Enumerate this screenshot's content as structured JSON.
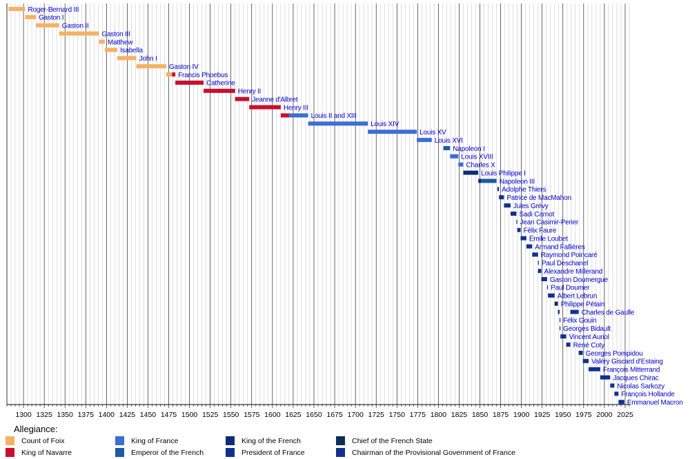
{
  "chart_data": {
    "type": "timeline",
    "title": "",
    "xlabel": "",
    "ylabel": "",
    "xlim": [
      1280,
      2030
    ],
    "x_ticks": [
      1300,
      1325,
      1350,
      1375,
      1400,
      1425,
      1450,
      1475,
      1500,
      1525,
      1550,
      1575,
      1600,
      1625,
      1650,
      1675,
      1700,
      1725,
      1750,
      1775,
      1800,
      1825,
      1850,
      1875,
      1900,
      1925,
      1950,
      1975,
      2000,
      2025
    ],
    "minor_tick_step": 5,
    "grid": "vertical",
    "legend": {
      "title": "Allegiance:",
      "placement": "bottom",
      "items": [
        {
          "key": "foix",
          "label": "Count of Foix",
          "color": "#F4B266"
        },
        {
          "key": "navarre",
          "label": "King of Navarre",
          "color": "#C8102E"
        },
        {
          "key": "france",
          "label": "King of France",
          "color": "#3D6FD1"
        },
        {
          "key": "emperor",
          "label": "Emperor of the French",
          "color": "#1F5A9E"
        },
        {
          "key": "french",
          "label": "King of the French",
          "color": "#102A7A"
        },
        {
          "key": "president",
          "label": "President of France",
          "color": "#10318F"
        },
        {
          "key": "chief",
          "label": "Chief of the French State",
          "color": "#0F2D55"
        },
        {
          "key": "provisional",
          "label": "Chairman of the Provisional Government of France",
          "color": "#12308A"
        }
      ]
    },
    "series": [
      {
        "label": "Roger-Bernard III",
        "segments": [
          {
            "start": 1282,
            "end": 1302,
            "key": "foix"
          }
        ]
      },
      {
        "label": "Gaston I",
        "segments": [
          {
            "start": 1302,
            "end": 1315,
            "key": "foix"
          }
        ]
      },
      {
        "label": "Gaston II",
        "segments": [
          {
            "start": 1315,
            "end": 1343,
            "key": "foix"
          }
        ]
      },
      {
        "label": "Gaston III",
        "segments": [
          {
            "start": 1343,
            "end": 1391,
            "key": "foix"
          }
        ]
      },
      {
        "label": "Matthew",
        "segments": [
          {
            "start": 1391,
            "end": 1398,
            "key": "foix"
          }
        ]
      },
      {
        "label": "Isabella",
        "segments": [
          {
            "start": 1398,
            "end": 1413,
            "key": "foix"
          }
        ]
      },
      {
        "label": "John I",
        "segments": [
          {
            "start": 1413,
            "end": 1436,
            "key": "foix"
          }
        ]
      },
      {
        "label": "Gaston IV",
        "segments": [
          {
            "start": 1436,
            "end": 1472,
            "key": "foix"
          }
        ]
      },
      {
        "label": "Francis Phoebus",
        "segments": [
          {
            "start": 1472,
            "end": 1479,
            "key": "foix"
          },
          {
            "start": 1479,
            "end": 1483,
            "key": "navarre"
          }
        ]
      },
      {
        "label": "Catherine",
        "segments": [
          {
            "start": 1483,
            "end": 1517,
            "key": "navarre"
          }
        ]
      },
      {
        "label": "Henry II",
        "segments": [
          {
            "start": 1517,
            "end": 1555,
            "key": "navarre"
          }
        ]
      },
      {
        "label": "Jeanne d'Albret",
        "segments": [
          {
            "start": 1555,
            "end": 1572,
            "key": "navarre"
          }
        ]
      },
      {
        "label": "Henry III",
        "segments": [
          {
            "start": 1572,
            "end": 1610,
            "key": "navarre"
          }
        ]
      },
      {
        "label": "Louis II and XIII",
        "segments": [
          {
            "start": 1610,
            "end": 1620,
            "key": "navarre"
          },
          {
            "start": 1620,
            "end": 1643,
            "key": "france"
          }
        ]
      },
      {
        "label": "Louis XIV",
        "segments": [
          {
            "start": 1643,
            "end": 1715,
            "key": "france"
          }
        ]
      },
      {
        "label": "Louis XV",
        "segments": [
          {
            "start": 1715,
            "end": 1774,
            "key": "france"
          }
        ]
      },
      {
        "label": "Louis XVI",
        "segments": [
          {
            "start": 1774,
            "end": 1792,
            "key": "france"
          }
        ]
      },
      {
        "label": "Napoleon I",
        "segments": [
          {
            "start": 1806,
            "end": 1814,
            "key": "emperor"
          }
        ]
      },
      {
        "label": "Louis XVIII",
        "segments": [
          {
            "start": 1814,
            "end": 1824,
            "key": "france"
          }
        ]
      },
      {
        "label": "Charles X",
        "segments": [
          {
            "start": 1824,
            "end": 1830,
            "key": "france"
          }
        ]
      },
      {
        "label": "Louis Philippe I",
        "segments": [
          {
            "start": 1830,
            "end": 1848,
            "key": "french"
          }
        ]
      },
      {
        "label": "Napoleon III",
        "segments": [
          {
            "start": 1848,
            "end": 1852,
            "key": "president"
          },
          {
            "start": 1852,
            "end": 1870,
            "key": "emperor"
          }
        ]
      },
      {
        "label": "Adolphe Thiers",
        "segments": [
          {
            "start": 1871,
            "end": 1873,
            "key": "president"
          }
        ]
      },
      {
        "label": "Patrice de MacMahon",
        "segments": [
          {
            "start": 1873,
            "end": 1879,
            "key": "president"
          }
        ]
      },
      {
        "label": "Jules Grévy",
        "segments": [
          {
            "start": 1879,
            "end": 1887,
            "key": "president"
          }
        ]
      },
      {
        "label": "Sadi Carnot",
        "segments": [
          {
            "start": 1887,
            "end": 1894,
            "key": "president"
          }
        ]
      },
      {
        "label": "Jean Casimir-Perier",
        "segments": [
          {
            "start": 1894,
            "end": 1895,
            "key": "president"
          }
        ]
      },
      {
        "label": "Félix Faure",
        "segments": [
          {
            "start": 1895,
            "end": 1899,
            "key": "president"
          }
        ]
      },
      {
        "label": "Émile Loubet",
        "segments": [
          {
            "start": 1899,
            "end": 1906,
            "key": "president"
          }
        ]
      },
      {
        "label": "Armand Fallières",
        "segments": [
          {
            "start": 1906,
            "end": 1913,
            "key": "president"
          }
        ]
      },
      {
        "label": "Raymond Poincaré",
        "segments": [
          {
            "start": 1913,
            "end": 1920,
            "key": "president"
          }
        ]
      },
      {
        "label": "Paul Deschanel",
        "segments": [
          {
            "start": 1920,
            "end": 1920.7,
            "key": "president"
          }
        ]
      },
      {
        "label": "Alexandre Millerand",
        "segments": [
          {
            "start": 1920,
            "end": 1924,
            "key": "president"
          }
        ]
      },
      {
        "label": "Gaston Doumergue",
        "segments": [
          {
            "start": 1924,
            "end": 1931,
            "key": "president"
          }
        ]
      },
      {
        "label": "Paul Doumer",
        "segments": [
          {
            "start": 1931,
            "end": 1932,
            "key": "president"
          }
        ]
      },
      {
        "label": "Albert Lebrun",
        "segments": [
          {
            "start": 1932,
            "end": 1940,
            "key": "president"
          }
        ]
      },
      {
        "label": "Philippe Pétain",
        "segments": [
          {
            "start": 1940,
            "end": 1944,
            "key": "chief"
          }
        ]
      },
      {
        "label": "Charles de Gaulle",
        "segments": [
          {
            "start": 1944,
            "end": 1946,
            "key": "provisional"
          },
          {
            "start": 1959,
            "end": 1969,
            "key": "president"
          }
        ]
      },
      {
        "label": "Félix Gouin",
        "segments": [
          {
            "start": 1946,
            "end": 1946.5,
            "key": "provisional"
          }
        ]
      },
      {
        "label": "Georges Bidault",
        "segments": [
          {
            "start": 1946,
            "end": 1947,
            "key": "provisional"
          }
        ]
      },
      {
        "label": "Vincent Auriol",
        "segments": [
          {
            "start": 1947,
            "end": 1954,
            "key": "president"
          }
        ]
      },
      {
        "label": "René Coty",
        "segments": [
          {
            "start": 1954,
            "end": 1959,
            "key": "president"
          }
        ]
      },
      {
        "label": "Georges Pompidou",
        "segments": [
          {
            "start": 1969,
            "end": 1974,
            "key": "president"
          }
        ]
      },
      {
        "label": "Valéry Giscard d'Estaing",
        "segments": [
          {
            "start": 1974,
            "end": 1981,
            "key": "president"
          }
        ]
      },
      {
        "label": "François Mitterrand",
        "segments": [
          {
            "start": 1981,
            "end": 1995,
            "key": "president"
          }
        ]
      },
      {
        "label": "Jacques Chirac",
        "segments": [
          {
            "start": 1995,
            "end": 2007,
            "key": "president"
          }
        ]
      },
      {
        "label": "Nicolas Sarkozy",
        "segments": [
          {
            "start": 2007,
            "end": 2012,
            "key": "president"
          }
        ]
      },
      {
        "label": "François Hollande",
        "segments": [
          {
            "start": 2012,
            "end": 2017,
            "key": "president"
          }
        ]
      },
      {
        "label": "Emmanuel Macron",
        "segments": [
          {
            "start": 2017,
            "end": 2024,
            "key": "president"
          }
        ]
      }
    ]
  }
}
